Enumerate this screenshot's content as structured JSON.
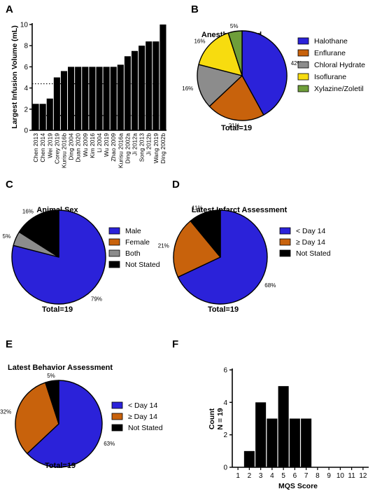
{
  "panels": {
    "A": {
      "label": "A",
      "chart_data": {
        "type": "bar",
        "ylabel": "Largest Infusion Volume (mL)",
        "xlabel": "",
        "ylim": [
          0,
          10
        ],
        "yticks": [
          0,
          2,
          4,
          6,
          8,
          10
        ],
        "reference_lines": [
          4.4,
          1.4
        ],
        "categories": [
          "Chen 2013",
          "Chen 2014",
          "Wei 2019",
          "Corey 2019",
          "Kurisu 2016b",
          "Ding 2004",
          "Duan 2020",
          "Wu 2009",
          "Kim 2016",
          "Li 2004",
          "Wu 2019",
          "Zhao 2009",
          "Kurisu 2016a",
          "Ding 2002a",
          "Ji 2012a",
          "Song 2013",
          "Ji 2012b",
          "Wang 2019",
          "Ding 2002b"
        ],
        "values": [
          2.5,
          2.5,
          3.0,
          5.0,
          5.6,
          6.0,
          6.0,
          6.0,
          6.0,
          6.0,
          6.0,
          6.0,
          6.2,
          7.0,
          7.5,
          8.0,
          8.4,
          8.4,
          10.0
        ]
      }
    },
    "B": {
      "label": "B",
      "chart_data": {
        "type": "pie",
        "title": "Anesthetic Used",
        "total": "Total=19",
        "labels": [
          "Halothane",
          "Enflurane",
          "Chloral Hydrate",
          "Isoflurane",
          "Xylazine/Zoletil"
        ],
        "values": [
          42,
          21,
          16,
          16,
          5
        ],
        "pct_labels": [
          "42%",
          "21%",
          "16%",
          "16%",
          "5%"
        ],
        "colors": [
          "#2b22d9",
          "#c8620c",
          "#8c8c8c",
          "#f7dc0f",
          "#6e9e3a"
        ]
      }
    },
    "C": {
      "label": "C",
      "chart_data": {
        "type": "pie",
        "title": "Animal Sex",
        "total": "Total=19",
        "labels": [
          "Male",
          "Female",
          "Both",
          "Not Stated"
        ],
        "values": [
          79,
          0,
          5,
          16
        ],
        "pct_labels": [
          "79%",
          "",
          "5%",
          "16%"
        ],
        "colors": [
          "#2b22d9",
          "#c8620c",
          "#8c8c8c",
          "#000000"
        ]
      }
    },
    "D": {
      "label": "D",
      "chart_data": {
        "type": "pie",
        "title": "Latest Infarct Assessment",
        "total": "Total=19",
        "labels": [
          "< Day 14",
          "≥ Day 14",
          "Not Stated"
        ],
        "values": [
          68,
          21,
          11
        ],
        "pct_labels": [
          "68%",
          "21%",
          "11%"
        ],
        "colors": [
          "#2b22d9",
          "#c8620c",
          "#000000"
        ]
      }
    },
    "E": {
      "label": "E",
      "chart_data": {
        "type": "pie",
        "title": "Latest Behavior Assessment",
        "total": "Total=19",
        "labels": [
          "< Day 14",
          "≥ Day 14",
          "Not Stated"
        ],
        "values": [
          63,
          32,
          5
        ],
        "pct_labels": [
          "63%",
          "32%",
          "5%"
        ],
        "colors": [
          "#2b22d9",
          "#c8620c",
          "#000000"
        ]
      }
    },
    "F": {
      "label": "F",
      "chart_data": {
        "type": "bar",
        "xlabel": "MQS Score",
        "ylabel": "Count",
        "ylabel2": "N = 19",
        "ylim": [
          0,
          6
        ],
        "yticks": [
          0,
          2,
          4,
          6
        ],
        "categories": [
          "1",
          "2",
          "3",
          "4",
          "5",
          "6",
          "7",
          "8",
          "9",
          "10",
          "11",
          "12"
        ],
        "values": [
          0,
          1,
          4,
          3,
          5,
          3,
          3,
          0,
          0,
          0,
          0,
          0
        ]
      }
    }
  }
}
